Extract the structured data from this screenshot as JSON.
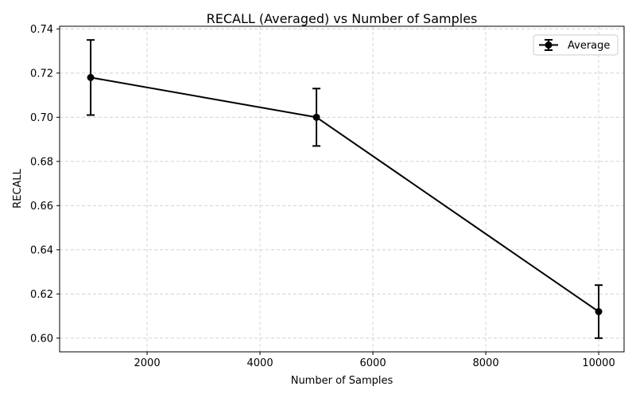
{
  "chart_data": {
    "type": "line",
    "title": "RECALL (Averaged) vs Number of Samples",
    "xlabel": "Number of Samples",
    "ylabel": "RECALL",
    "xlim": [
      450,
      10450
    ],
    "ylim": [
      0.5938,
      0.7412
    ],
    "xticks": [
      2000,
      4000,
      6000,
      8000,
      10000
    ],
    "yticks": [
      0.6,
      0.62,
      0.64,
      0.66,
      0.68,
      0.7,
      0.72,
      0.74
    ],
    "grid": true,
    "legend_position": "top-right",
    "series": [
      {
        "name": "Average",
        "color": "#000000",
        "marker": "circle",
        "x": [
          1000,
          5000,
          10000
        ],
        "y": [
          0.718,
          0.7,
          0.612
        ],
        "yerr": [
          0.017,
          0.013,
          0.012
        ]
      }
    ]
  }
}
